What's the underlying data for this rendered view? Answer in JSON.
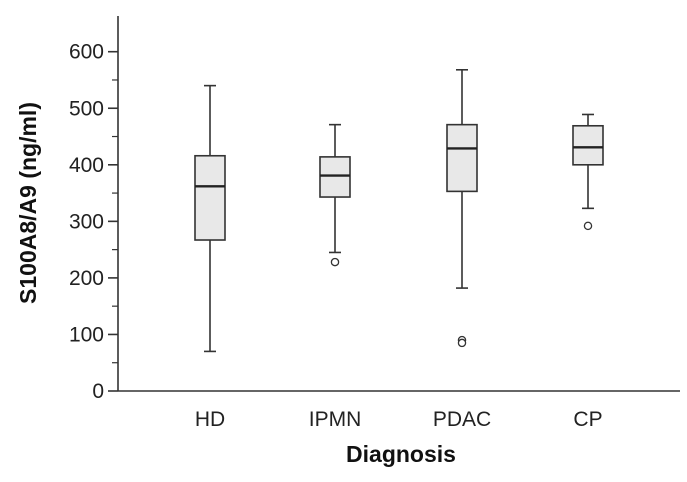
{
  "chart_data": {
    "type": "box",
    "title": "",
    "xlabel": "Diagnosis",
    "ylabel": "S100A8/A9 (ng/ml)",
    "ylim": [
      0,
      650
    ],
    "yticks": [
      0,
      100,
      200,
      300,
      400,
      500,
      600
    ],
    "yminor_step": 50,
    "grid": false,
    "box_color": "#e8e8e8",
    "line_color": "#333333",
    "categories": [
      "HD",
      "IPMN",
      "PDAC",
      "CP"
    ],
    "boxes": [
      {
        "category": "HD",
        "whisker_low": 70,
        "q1": 267,
        "median": 362,
        "q3": 416,
        "whisker_high": 540,
        "outliers": []
      },
      {
        "category": "IPMN",
        "whisker_low": 245,
        "q1": 343,
        "median": 381,
        "q3": 414,
        "whisker_high": 471,
        "outliers": [
          228
        ]
      },
      {
        "category": "PDAC",
        "whisker_low": 182,
        "q1": 353,
        "median": 429,
        "q3": 471,
        "whisker_high": 568,
        "outliers": [
          90,
          85
        ]
      },
      {
        "category": "CP",
        "whisker_low": 323,
        "q1": 400,
        "median": 431,
        "q3": 469,
        "whisker_high": 489,
        "outliers": [
          292
        ]
      }
    ]
  }
}
